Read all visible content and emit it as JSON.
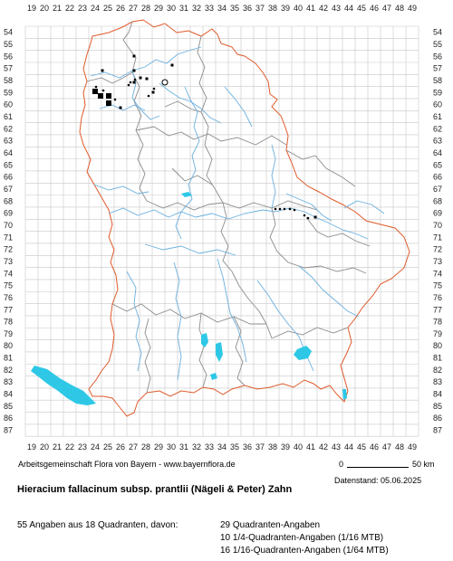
{
  "map": {
    "columns": [
      "19",
      "20",
      "21",
      "22",
      "23",
      "24",
      "25",
      "26",
      "27",
      "28",
      "29",
      "30",
      "31",
      "32",
      "33",
      "34",
      "35",
      "36",
      "37",
      "38",
      "39",
      "40",
      "41",
      "42",
      "43",
      "44",
      "45",
      "46",
      "47",
      "48",
      "49"
    ],
    "rows": [
      "54",
      "55",
      "56",
      "57",
      "58",
      "59",
      "60",
      "61",
      "62",
      "63",
      "64",
      "65",
      "66",
      "67",
      "68",
      "69",
      "70",
      "71",
      "72",
      "73",
      "74",
      "75",
      "76",
      "77",
      "78",
      "79",
      "80",
      "81",
      "82",
      "83",
      "84",
      "85",
      "86",
      "87"
    ],
    "colors": {
      "grid": "#c8c8c8",
      "state_border": "#e05a2b",
      "district_border": "#8c8c8c",
      "river": "#6ab0de",
      "lake": "#2ec8e6",
      "record": "#000000"
    }
  },
  "legend": {
    "organization": "Arbeitsgemeinschaft Flora von Bayern - www.bayernflora.de",
    "scale_start": "0",
    "scale_end": "50 km",
    "date": "Datenstand: 05.06.2025"
  },
  "species": {
    "title": "Hieracium fallacinum subsp. prantlii (Nägeli & Peter) Zahn"
  },
  "stats": {
    "summary": "55 Angaben aus 18 Quadranten, davon:",
    "quadrant_records": "29 Quadranten-Angaben",
    "quarter_records": "10 1/4-Quadranten-Angaben (1/16 MTB)",
    "sixteenth_records": "16 1/16-Quadranten-Angaben (1/64 MTB)"
  }
}
